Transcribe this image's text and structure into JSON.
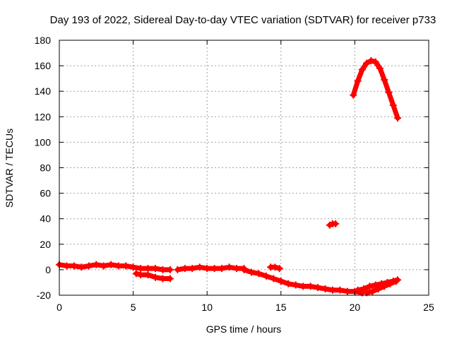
{
  "chart_data": {
    "type": "scatter",
    "title": "Day 193 of 2022, Sidereal Day-to-day VTEC variation (SDTVAR) for receiver p733",
    "xlabel": "GPS time / hours",
    "ylabel": "SDTVAR / TECUs",
    "xlim": [
      0,
      25
    ],
    "ylim": [
      -20,
      180
    ],
    "xticks": [
      "0",
      "5",
      "10",
      "15",
      "20",
      "25"
    ],
    "yticks": [
      "-20",
      "0",
      "20",
      "40",
      "60",
      "80",
      "100",
      "120",
      "140",
      "160",
      "180"
    ],
    "grid": true,
    "marker": "plus",
    "color": "#ff0000",
    "series": [
      {
        "name": "segment-1",
        "x": [
          0,
          0.5,
          1,
          1.5,
          2,
          2.5,
          3,
          3.5,
          4,
          4.5,
          5,
          5.5,
          6,
          6.5,
          7,
          7.5
        ],
        "y": [
          4,
          3,
          3,
          2,
          3,
          4,
          3,
          4,
          3,
          3,
          2,
          1,
          1,
          1,
          0,
          0
        ]
      },
      {
        "name": "segment-2",
        "x": [
          5.2,
          5.5,
          6,
          6.5,
          7,
          7.5
        ],
        "y": [
          -3,
          -4,
          -4,
          -6,
          -7,
          -7
        ]
      },
      {
        "name": "segment-3",
        "x": [
          8,
          8.5,
          9,
          9.5,
          10,
          10.5,
          11,
          11.5,
          12,
          12.5
        ],
        "y": [
          0,
          1,
          1,
          2,
          1,
          1,
          1,
          2,
          1,
          1
        ]
      },
      {
        "name": "segment-4",
        "x": [
          12.5,
          13,
          13.5,
          14,
          14.5,
          15
        ],
        "y": [
          0,
          -2,
          -3,
          -5,
          -7,
          -9
        ]
      },
      {
        "name": "segment-5",
        "x": [
          14.3,
          14.6,
          14.9
        ],
        "y": [
          2,
          2,
          1
        ]
      },
      {
        "name": "segment-6",
        "x": [
          15,
          15.5,
          16,
          16.5,
          17,
          17.5,
          18,
          18.5,
          19,
          19.5,
          20,
          20.5
        ],
        "y": [
          -9,
          -11,
          -12,
          -13,
          -13,
          -14,
          -15,
          -16,
          -16,
          -17,
          -17,
          -18
        ]
      },
      {
        "name": "segment-7",
        "x": [
          20.2,
          20.6,
          21,
          21.4,
          21.8,
          22.2,
          22.6,
          22.9
        ],
        "y": [
          -16,
          -15,
          -13,
          -12,
          -11,
          -10,
          -9,
          -8
        ]
      },
      {
        "name": "segment-8",
        "x": [
          20.8,
          21.2,
          21.6,
          22,
          22.4,
          22.8
        ],
        "y": [
          -18,
          -17,
          -15,
          -13,
          -11,
          -9
        ]
      },
      {
        "name": "segment-9",
        "x": [
          18.3,
          18.5,
          18.7
        ],
        "y": [
          35,
          36,
          36
        ]
      },
      {
        "name": "segment-10",
        "x": [
          19.9,
          20.2,
          20.5,
          20.8,
          21.1,
          21.4,
          21.7,
          22,
          22.3,
          22.6,
          22.9
        ],
        "y": [
          137,
          148,
          157,
          162,
          164,
          163,
          158,
          149,
          139,
          129,
          119
        ]
      }
    ]
  }
}
